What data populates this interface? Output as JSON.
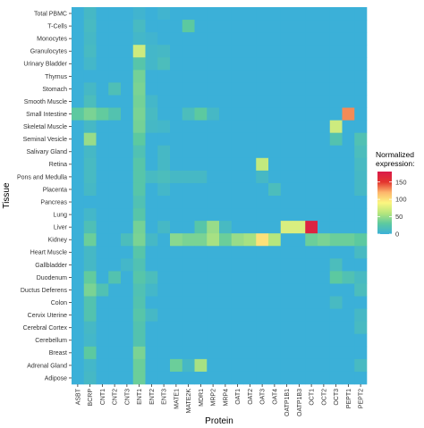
{
  "chart_data": {
    "type": "heatmap",
    "xlabel": "Protein",
    "ylabel": "Tissue",
    "legend": {
      "title": "Normalized expression:",
      "ticks": [
        0,
        50,
        100,
        150
      ],
      "range": [
        0,
        180
      ],
      "placement": "right"
    },
    "grid": false,
    "colors": {
      "background": "#3bb0d8",
      "scale": [
        "#3bb0d8",
        "#5cc9a0",
        "#b6e67d",
        "#fbf680",
        "#fdb66c",
        "#e3342e",
        "#d91a4a"
      ]
    },
    "x": [
      "ASBT",
      "BCRP",
      "CNT1",
      "CNT2",
      "CNT3",
      "ENT1",
      "ENT2",
      "ENT3",
      "MATE1",
      "MATE2K",
      "MDR1",
      "MRP2",
      "MRP4",
      "OAT1",
      "OAT2",
      "OAT3",
      "OAT4",
      "OATP1B1",
      "OATP1B3",
      "OCT1",
      "OCT2",
      "OCT3",
      "PEPT1",
      "PEPT2"
    ],
    "y": [
      "Total PBMC",
      "T-Cells",
      "Monocytes",
      "Granulocytes",
      "Urinary Bladder",
      "Thymus",
      "Stomach",
      "Smooth Muscle",
      "Small Intestine",
      "Skeletal Muscle",
      "Seminal Vesicle",
      "Salivary Gland",
      "Retina",
      "Pons and Medulla",
      "Placenta",
      "Pancreas",
      "Lung",
      "Liver",
      "Kidney",
      "Heart Muscle",
      "Gallbladder",
      "Duodenum",
      "Ductus Deferens",
      "Colon",
      "Cervix Uterine",
      "Cerebral Cortex",
      "Cerebellum",
      "Breast",
      "Adrenal Gland",
      "Adipose"
    ],
    "values": [
      [
        0,
        10,
        0,
        0,
        0,
        5,
        0,
        5,
        0,
        0,
        0,
        0,
        0,
        0,
        0,
        0,
        0,
        0,
        0,
        0,
        0,
        0,
        0,
        0
      ],
      [
        0,
        12,
        0,
        0,
        0,
        12,
        0,
        0,
        0,
        30,
        0,
        0,
        0,
        0,
        0,
        0,
        0,
        0,
        0,
        0,
        0,
        0,
        0,
        0
      ],
      [
        0,
        10,
        0,
        0,
        0,
        8,
        5,
        0,
        0,
        0,
        0,
        0,
        0,
        0,
        0,
        0,
        0,
        0,
        0,
        0,
        0,
        0,
        0,
        0
      ],
      [
        0,
        12,
        0,
        0,
        0,
        70,
        8,
        10,
        0,
        0,
        0,
        0,
        0,
        0,
        0,
        0,
        0,
        0,
        0,
        0,
        0,
        0,
        0,
        0
      ],
      [
        0,
        8,
        0,
        0,
        0,
        25,
        8,
        15,
        0,
        0,
        0,
        0,
        0,
        0,
        0,
        0,
        0,
        0,
        0,
        0,
        0,
        0,
        0,
        0
      ],
      [
        0,
        0,
        0,
        0,
        0,
        38,
        0,
        0,
        0,
        0,
        0,
        0,
        0,
        0,
        0,
        0,
        0,
        0,
        0,
        0,
        0,
        0,
        0,
        0
      ],
      [
        0,
        10,
        0,
        18,
        0,
        40,
        0,
        0,
        0,
        0,
        0,
        0,
        0,
        0,
        0,
        0,
        0,
        0,
        0,
        0,
        0,
        0,
        0,
        0
      ],
      [
        0,
        15,
        0,
        0,
        0,
        38,
        8,
        0,
        0,
        0,
        0,
        0,
        0,
        0,
        0,
        0,
        0,
        0,
        0,
        0,
        0,
        0,
        0,
        0
      ],
      [
        30,
        40,
        32,
        22,
        0,
        40,
        12,
        0,
        0,
        15,
        30,
        10,
        0,
        0,
        0,
        0,
        0,
        0,
        0,
        0,
        0,
        0,
        130,
        0
      ],
      [
        0,
        10,
        0,
        0,
        0,
        38,
        10,
        8,
        0,
        0,
        0,
        0,
        0,
        0,
        0,
        0,
        0,
        0,
        0,
        0,
        0,
        70,
        0,
        0
      ],
      [
        0,
        50,
        0,
        0,
        0,
        30,
        0,
        0,
        0,
        0,
        0,
        0,
        0,
        0,
        0,
        0,
        0,
        0,
        0,
        0,
        0,
        22,
        0,
        20
      ],
      [
        0,
        10,
        0,
        0,
        0,
        20,
        0,
        10,
        0,
        0,
        0,
        0,
        0,
        0,
        0,
        0,
        0,
        0,
        0,
        0,
        0,
        0,
        0,
        15
      ],
      [
        0,
        12,
        0,
        0,
        0,
        25,
        0,
        10,
        0,
        0,
        0,
        0,
        0,
        0,
        0,
        65,
        0,
        0,
        0,
        0,
        0,
        0,
        0,
        12
      ],
      [
        0,
        12,
        0,
        0,
        0,
        25,
        12,
        15,
        10,
        10,
        10,
        0,
        0,
        0,
        0,
        10,
        0,
        0,
        0,
        0,
        0,
        0,
        0,
        10
      ],
      [
        0,
        10,
        0,
        0,
        0,
        25,
        0,
        8,
        0,
        0,
        0,
        0,
        0,
        0,
        0,
        0,
        15,
        0,
        0,
        0,
        0,
        0,
        0,
        10
      ],
      [
        0,
        0,
        0,
        0,
        0,
        20,
        0,
        0,
        0,
        0,
        0,
        0,
        0,
        0,
        0,
        0,
        0,
        0,
        0,
        0,
        0,
        0,
        0,
        0
      ],
      [
        0,
        8,
        0,
        0,
        0,
        25,
        0,
        0,
        0,
        0,
        0,
        0,
        0,
        0,
        0,
        0,
        0,
        0,
        0,
        0,
        0,
        0,
        0,
        0
      ],
      [
        0,
        18,
        0,
        0,
        0,
        38,
        0,
        10,
        0,
        0,
        25,
        50,
        12,
        0,
        0,
        0,
        0,
        75,
        75,
        170,
        0,
        0,
        0,
        0
      ],
      [
        0,
        35,
        0,
        0,
        15,
        40,
        10,
        0,
        45,
        40,
        40,
        55,
        35,
        50,
        55,
        100,
        60,
        0,
        0,
        35,
        40,
        35,
        35,
        30
      ],
      [
        0,
        10,
        0,
        0,
        0,
        25,
        0,
        0,
        0,
        0,
        0,
        0,
        0,
        0,
        0,
        0,
        0,
        0,
        0,
        0,
        0,
        0,
        0,
        12
      ],
      [
        0,
        10,
        0,
        0,
        8,
        20,
        0,
        0,
        0,
        0,
        0,
        0,
        0,
        0,
        0,
        0,
        0,
        0,
        0,
        0,
        0,
        15,
        0,
        0
      ],
      [
        0,
        32,
        0,
        22,
        0,
        25,
        15,
        0,
        0,
        0,
        0,
        0,
        0,
        0,
        0,
        0,
        0,
        0,
        0,
        0,
        0,
        30,
        20,
        12
      ],
      [
        0,
        40,
        20,
        0,
        0,
        20,
        8,
        0,
        0,
        0,
        0,
        0,
        0,
        0,
        0,
        0,
        0,
        0,
        0,
        0,
        0,
        0,
        0,
        15
      ],
      [
        0,
        22,
        0,
        0,
        0,
        22,
        0,
        0,
        0,
        0,
        0,
        0,
        0,
        0,
        0,
        0,
        0,
        0,
        0,
        0,
        0,
        12,
        0,
        0
      ],
      [
        0,
        22,
        0,
        0,
        0,
        25,
        10,
        0,
        0,
        0,
        0,
        0,
        0,
        0,
        0,
        0,
        0,
        0,
        0,
        0,
        0,
        0,
        0,
        10
      ],
      [
        0,
        10,
        0,
        0,
        0,
        22,
        0,
        0,
        0,
        0,
        0,
        0,
        0,
        0,
        0,
        0,
        0,
        0,
        0,
        0,
        0,
        0,
        0,
        12
      ],
      [
        0,
        8,
        0,
        0,
        0,
        22,
        0,
        0,
        0,
        0,
        0,
        0,
        0,
        0,
        0,
        0,
        0,
        0,
        0,
        0,
        0,
        0,
        0,
        0
      ],
      [
        0,
        30,
        0,
        0,
        0,
        40,
        0,
        0,
        0,
        0,
        0,
        0,
        0,
        0,
        0,
        0,
        0,
        0,
        0,
        0,
        0,
        0,
        0,
        0
      ],
      [
        0,
        8,
        0,
        0,
        0,
        35,
        0,
        0,
        35,
        10,
        55,
        0,
        0,
        0,
        0,
        0,
        0,
        0,
        0,
        0,
        0,
        0,
        0,
        12
      ],
      [
        0,
        10,
        0,
        0,
        0,
        35,
        0,
        0,
        0,
        0,
        0,
        0,
        0,
        0,
        0,
        0,
        0,
        0,
        0,
        0,
        0,
        0,
        0,
        0
      ]
    ]
  }
}
